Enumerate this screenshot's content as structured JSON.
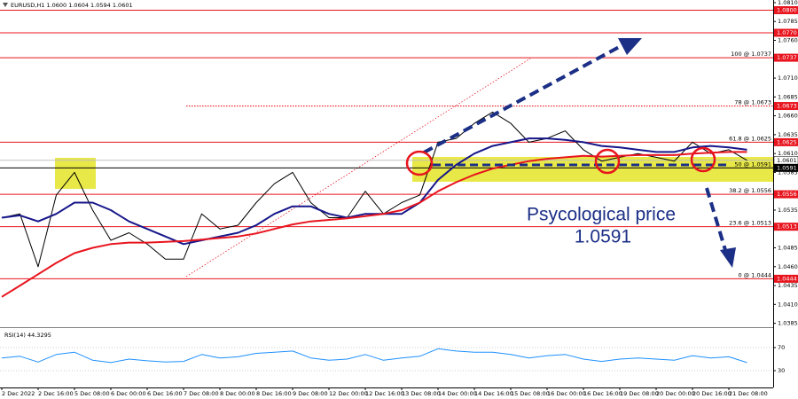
{
  "chart_data": [
    {
      "type": "line",
      "title": "EURUSD,H1  1.0600 1.0604 1.0594 1.0601",
      "categories": [
        "2 Dec 2022",
        null,
        "2 Dec 16:00",
        null,
        "5 Dec 08:00",
        null,
        "6 Dec 00:00",
        null,
        "6 Dec 16:00",
        null,
        "7 Dec 08:00",
        null,
        "8 Dec 00:00",
        null,
        "8 Dec 16:00",
        null,
        "9 Dec 08:00",
        null,
        "12 Dec 00:00",
        null,
        "12 Dec 16:00",
        null,
        "13 Dec 08:00",
        null,
        "14 Dec 00:00",
        null,
        "14 Dec 16:00",
        null,
        "15 Dec 08:00",
        null,
        "16 Dec 00:00",
        null,
        "16 Dec 16:00",
        null,
        "19 Dec 08:00",
        null,
        "20 Dec 00:00",
        null,
        "20 Dec 16:00",
        null,
        "21 Dec 08:00",
        null
      ],
      "series": [
        {
          "name": "EURUSD",
          "color": "#000000",
          "values": [
            1.0525,
            1.053,
            1.046,
            1.0555,
            1.0585,
            1.0535,
            1.0495,
            1.0505,
            1.049,
            1.047,
            1.047,
            1.053,
            1.051,
            1.0515,
            1.0545,
            1.057,
            1.0585,
            1.0545,
            1.0525,
            1.0525,
            1.056,
            1.053,
            1.0545,
            1.0555,
            1.0625,
            1.063,
            1.065,
            1.0665,
            1.065,
            1.0625,
            1.063,
            1.064,
            1.0615,
            1.06,
            1.0605,
            1.061,
            1.0605,
            1.06,
            1.0625,
            1.061,
            1.0615,
            1.0601
          ]
        },
        {
          "name": "MA fast",
          "color": "#16168a",
          "values": [
            1.0525,
            1.0528,
            1.052,
            1.053,
            1.0545,
            1.0545,
            1.0535,
            1.052,
            1.051,
            1.05,
            1.049,
            1.0495,
            1.05,
            1.0505,
            1.0515,
            1.053,
            1.054,
            1.054,
            1.053,
            1.0525,
            1.053,
            1.053,
            1.053,
            1.0545,
            1.0575,
            1.0595,
            1.061,
            1.062,
            1.0625,
            1.063,
            1.063,
            1.0628,
            1.0625,
            1.062,
            1.0618,
            1.0615,
            1.0612,
            1.0612,
            1.0618,
            1.062,
            1.0618,
            1.0615
          ]
        },
        {
          "name": "MA slow",
          "color": "#e8141e",
          "values": [
            1.042,
            1.0435,
            1.045,
            1.0465,
            1.0478,
            1.0485,
            1.049,
            1.0492,
            1.0492,
            1.0493,
            1.0494,
            1.0496,
            1.0498,
            1.05,
            1.0504,
            1.051,
            1.0516,
            1.052,
            1.0522,
            1.0524,
            1.0527,
            1.053,
            1.0535,
            1.0545,
            1.056,
            1.0572,
            1.0582,
            1.059,
            1.0595,
            1.06,
            1.0603,
            1.0605,
            1.0607,
            1.0606,
            1.0607,
            1.0608,
            1.0608,
            1.0608,
            1.061,
            1.0611,
            1.0612,
            1.0612
          ]
        }
      ],
      "ylim": [
        1.0381,
        1.08135
      ],
      "yticks": [
        {
          "value": 1.081,
          "label": "1.0810"
        },
        1.0785,
        {
          "value": 1.076,
          "label": "1.0760"
        },
        {
          "value": 1.071,
          "label": "1.0710"
        },
        1.0685,
        {
          "value": 1.066,
          "label": "1.0660"
        },
        1.0635,
        {
          "value": 1.061,
          "label": "1.0610"
        },
        1.0585,
        1.0535,
        1.0485,
        {
          "value": 1.046,
          "label": "1.0460"
        },
        1.0435,
        {
          "value": 1.041,
          "label": "1.0410"
        },
        1.0385
      ],
      "levels": [
        {
          "value": 1.08,
          "label": "1.0800",
          "color": "#e8141e",
          "style": "solid"
        },
        {
          "value": 1.077,
          "label": "1.0770",
          "color": "#e8141e",
          "style": "solid"
        },
        {
          "value": 1.0737,
          "label": "1.0737",
          "color": "#e8141e",
          "style": "solid"
        },
        {
          "value": 1.0673,
          "label": "1.0673",
          "color": "#e8141e",
          "style": "dotted"
        },
        {
          "value": 1.0625,
          "label": "1.0625",
          "color": "#e8141e",
          "style": "solid"
        },
        {
          "value": 1.0601,
          "label": "1.0601",
          "color": "#c0c0c0",
          "style": "solid"
        },
        {
          "value": 1.0591,
          "label": "1.0591",
          "color": "#000000",
          "style": "solid"
        },
        {
          "value": 1.0556,
          "label": "1.0556",
          "color": "#e8141e",
          "style": "solid"
        },
        {
          "value": 1.0513,
          "label": "1.0513",
          "color": "#e8141e",
          "style": "solid"
        },
        {
          "value": 1.0444,
          "label": "1.0444",
          "color": "#e8141e",
          "style": "solid"
        }
      ],
      "fib_levels": [
        {
          "value": 1.0737,
          "label": "100 @ 1.0737"
        },
        {
          "value": 1.0673,
          "label": "78 @ 1.0673"
        },
        {
          "value": 1.0625,
          "label": "61.8 @ 1.0625"
        },
        {
          "value": 1.0591,
          "label": "50 @ 1.0591"
        },
        {
          "value": 1.0556,
          "label": "38.2 @ 1.0556"
        },
        {
          "value": 1.0513,
          "label": "23.6 @ 1.0513"
        },
        {
          "value": 1.0444,
          "label": "0 @ 1.0444"
        }
      ],
      "annotations": [
        "Psycological price",
        "1.0591"
      ]
    },
    {
      "type": "line",
      "title": "RSI(14) 44.3295",
      "series": [
        {
          "name": "RSI(14)",
          "color": "#1e90ff",
          "values": [
            52,
            55,
            45,
            58,
            62,
            48,
            44,
            50,
            47,
            45,
            46,
            58,
            52,
            54,
            60,
            62,
            64,
            52,
            48,
            50,
            58,
            48,
            52,
            55,
            68,
            64,
            62,
            62,
            58,
            52,
            56,
            58,
            50,
            46,
            50,
            52,
            50,
            48,
            56,
            52,
            54,
            44
          ]
        }
      ],
      "ylim": [
        0,
        100
      ],
      "yticks": [
        70,
        30
      ]
    }
  ]
}
